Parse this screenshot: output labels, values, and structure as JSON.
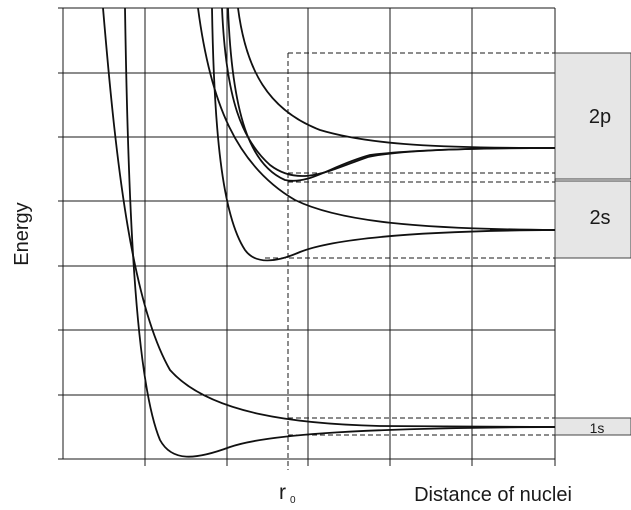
{
  "axes": {
    "ylabel": "Energy",
    "xlabel": "Distance of nuclei",
    "r0_label": "r",
    "r0_subscript": "0"
  },
  "bands": [
    {
      "id": "2p",
      "label": "2p"
    },
    {
      "id": "2s",
      "label": "2s"
    },
    {
      "id": "1s",
      "label": "1s"
    }
  ],
  "colors": {
    "band_fill": "#e6e6e6",
    "line": "#111111"
  }
}
